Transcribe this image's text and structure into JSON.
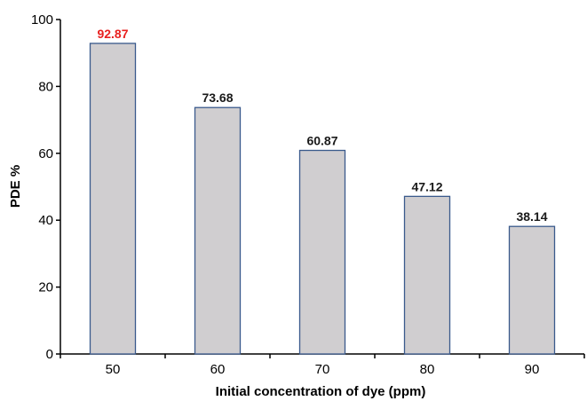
{
  "chart_data": {
    "type": "bar",
    "title": "",
    "xlabel": "Initial concentration of dye (ppm)",
    "ylabel": "PDE %",
    "categories": [
      "50",
      "60",
      "70",
      "80",
      "90"
    ],
    "values": [
      92.87,
      73.68,
      60.87,
      47.12,
      38.14
    ],
    "data_labels": [
      "92.87",
      "73.68",
      "60.87",
      "47.12",
      "38.14"
    ],
    "ylim": [
      0,
      100
    ],
    "yticks": [
      "0",
      "20",
      "40",
      "60",
      "80",
      "100"
    ],
    "grid": false,
    "legend": "none",
    "colors": {
      "bar_fill": "#d0ced0",
      "bar_stroke": "#3a5a8c",
      "axis": "#000000",
      "label_default": "#1a1a1a",
      "label_highlight": "#e8201f"
    },
    "highlight_index": 0
  }
}
